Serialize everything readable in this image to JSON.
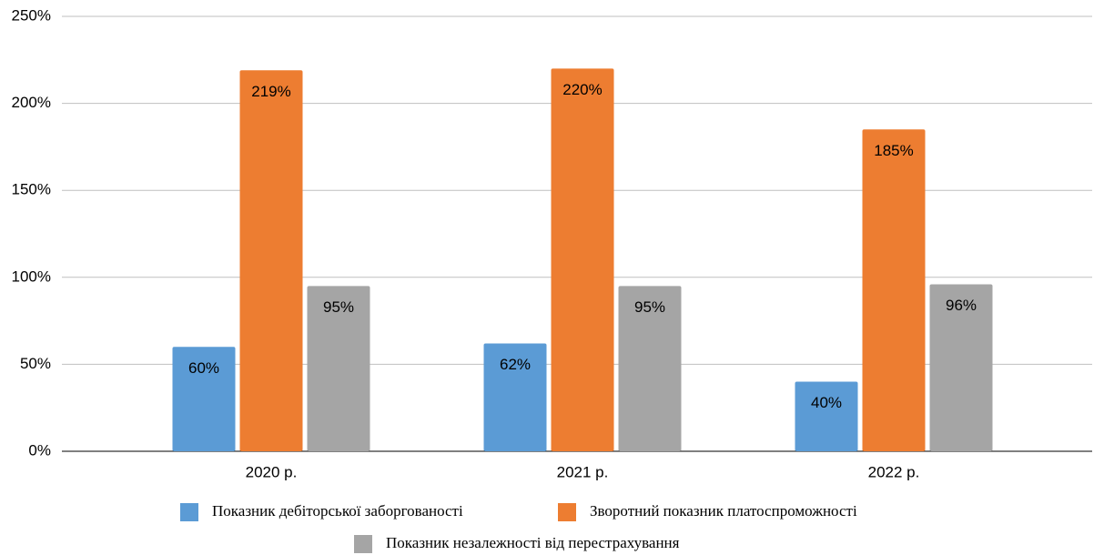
{
  "chart_data": {
    "type": "bar",
    "categories": [
      "2020 р.",
      "2021 р.",
      "2022 р."
    ],
    "series": [
      {
        "name": "Показник дебіторської заборгованості",
        "color": "#5b9bd5",
        "values": [
          60,
          62,
          40
        ],
        "value_labels": [
          "60%",
          "62%",
          "40%"
        ]
      },
      {
        "name": "Зворотний показник платоспроможності",
        "color": "#ed7d31",
        "values": [
          219,
          220,
          185
        ],
        "value_labels": [
          "219%",
          "220%",
          "185%"
        ]
      },
      {
        "name": "Показник незалежності від перестрахування",
        "color": "#a5a5a5",
        "values": [
          95,
          95,
          96
        ],
        "value_labels": [
          "95%",
          "95%",
          "96%"
        ]
      }
    ],
    "ylim": [
      0,
      250
    ],
    "yticks": [
      {
        "value": 0,
        "label": "0%"
      },
      {
        "value": 50,
        "label": "50%"
      },
      {
        "value": 100,
        "label": "100%"
      },
      {
        "value": 150,
        "label": "150%"
      },
      {
        "value": 200,
        "label": "200%"
      },
      {
        "value": 250,
        "label": "250%"
      }
    ],
    "grid": true
  }
}
